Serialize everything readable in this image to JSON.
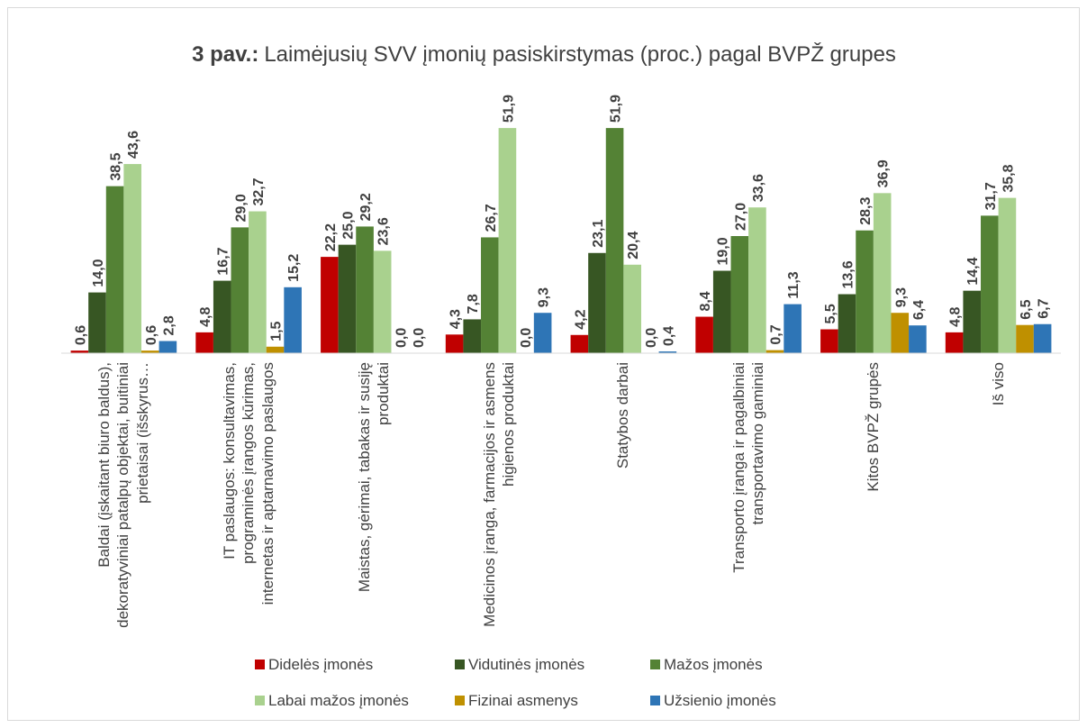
{
  "chart_data": {
    "type": "bar",
    "title_label": "3 pav.:",
    "title": "Laimėjusių SVV įmonių pasiskirstymas (proc.) pagal BVPŽ grupes",
    "categories": [
      "Baldai (įskaitant biuro baldus), dekoratyviniai patalpų objektai, buitiniai prietaisai (išskyrus…",
      "IT paslaugos: konsultavimas, programinės įrangos kūrimas, internetas ir aptarnavimo paslaugos",
      "Maistas, gėrimai, tabakas ir susiję produktai",
      "Medicinos įranga, farmacijos ir asmens higienos produktai",
      "Statybos darbai",
      "Transporto įranga ir pagalbiniai transportavimo gaminiai",
      "Kitos BVPŽ grupės",
      "Iš viso"
    ],
    "ylim": [
      0,
      54
    ],
    "series": [
      {
        "name": "Didelės įmonės",
        "color": "#c00000",
        "values": [
          0.6,
          4.8,
          22.2,
          4.3,
          4.2,
          8.4,
          5.5,
          4.8
        ],
        "value_labels": [
          "0,6",
          "4,8",
          "22,2",
          "4,3",
          "4,2",
          "8,4",
          "5,5",
          "4,8"
        ]
      },
      {
        "name": "Vidutinės įmonės",
        "color": "#375623",
        "values": [
          14.0,
          16.7,
          25.0,
          7.8,
          23.1,
          19.0,
          13.6,
          14.4
        ],
        "value_labels": [
          "14,0",
          "16,7",
          "25,0",
          "7,8",
          "23,1",
          "19,0",
          "13,6",
          "14,4"
        ]
      },
      {
        "name": "Mažos įmonės",
        "color": "#548235",
        "values": [
          38.5,
          29.0,
          29.2,
          26.7,
          51.9,
          27.0,
          28.3,
          31.7
        ],
        "value_labels": [
          "38,5",
          "29,0",
          "29,2",
          "26,7",
          "51,9",
          "27,0",
          "28,3",
          "31,7"
        ]
      },
      {
        "name": "Labai mažos įmonės",
        "color": "#a9d18e",
        "values": [
          43.6,
          32.7,
          23.6,
          51.9,
          20.4,
          33.6,
          36.9,
          35.8
        ],
        "value_labels": [
          "43,6",
          "32,7",
          "23,6",
          "51,9",
          "20,4",
          "33,6",
          "36,9",
          "35,8"
        ]
      },
      {
        "name": "Fizinai asmenys",
        "color": "#bf9000",
        "values": [
          0.6,
          1.5,
          0.0,
          0.0,
          0.0,
          0.7,
          9.3,
          6.5
        ],
        "value_labels": [
          "0,6",
          "1,5",
          "0,0",
          "0,0",
          "0,0",
          "0,7",
          "9,3",
          "6,5"
        ]
      },
      {
        "name": "Užsienio įmonės",
        "color": "#2e75b6",
        "values": [
          2.8,
          15.2,
          0.0,
          9.3,
          0.4,
          11.3,
          6.4,
          6.7
        ],
        "value_labels": [
          "2,8",
          "15,2",
          "0,0",
          "9,3",
          "0,4",
          "11,3",
          "6,4",
          "6,7"
        ]
      }
    ]
  }
}
